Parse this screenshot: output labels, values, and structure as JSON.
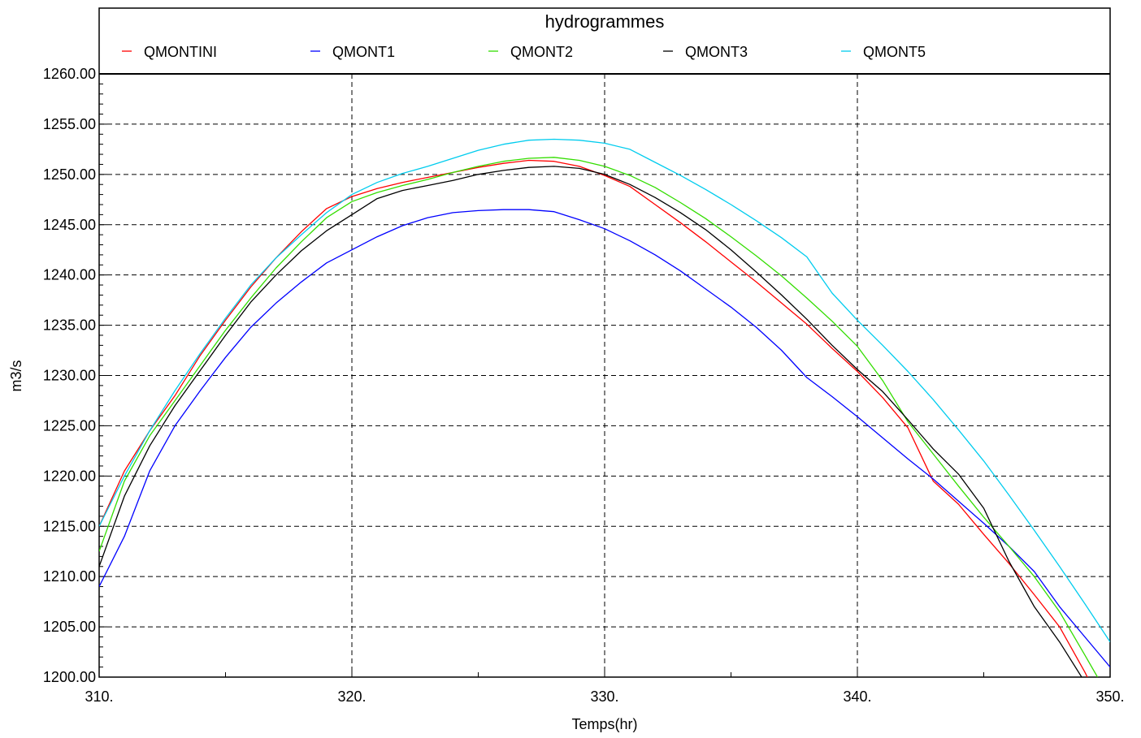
{
  "chart_data": {
    "type": "line",
    "title": "hydrogrammes",
    "xlabel": "Temps(hr)",
    "ylabel": "m3/s",
    "xlim": [
      310,
      350
    ],
    "ylim": [
      1200,
      1260
    ],
    "x_ticks": [
      "310.",
      "320.",
      "330.",
      "340.",
      "350."
    ],
    "x_tick_values": [
      310,
      320,
      330,
      340,
      350
    ],
    "y_ticks": [
      "1200.00",
      "1205.00",
      "1210.00",
      "1215.00",
      "1220.00",
      "1225.00",
      "1230.00",
      "1235.00",
      "1240.00",
      "1245.00",
      "1250.00",
      "1255.00",
      "1260.00"
    ],
    "y_tick_values": [
      1200,
      1205,
      1210,
      1215,
      1220,
      1225,
      1230,
      1235,
      1240,
      1245,
      1250,
      1255,
      1260
    ],
    "grid": true,
    "legend_position": "top",
    "series": [
      {
        "name": "QMONTINI",
        "color": "#ff0000",
        "points": [
          [
            310,
            1215
          ],
          [
            311,
            1220.5
          ],
          [
            312,
            1224.5
          ],
          [
            313,
            1228
          ],
          [
            314,
            1232
          ],
          [
            315,
            1235.5
          ],
          [
            316,
            1238.8
          ],
          [
            317,
            1241.7
          ],
          [
            318,
            1244.3
          ],
          [
            319,
            1246.6
          ],
          [
            320,
            1247.8
          ],
          [
            321,
            1248.6
          ],
          [
            322,
            1249.2
          ],
          [
            323,
            1249.7
          ],
          [
            324,
            1250.2
          ],
          [
            325,
            1250.7
          ],
          [
            326,
            1251.1
          ],
          [
            327,
            1251.4
          ],
          [
            328,
            1251.3
          ],
          [
            329,
            1250.8
          ],
          [
            330,
            1249.9
          ],
          [
            331,
            1248.8
          ],
          [
            332,
            1247
          ],
          [
            333,
            1245.2
          ],
          [
            334,
            1243.3
          ],
          [
            335,
            1241.3
          ],
          [
            336,
            1239.3
          ],
          [
            337,
            1237.2
          ],
          [
            338,
            1235.1
          ],
          [
            339,
            1232.7
          ],
          [
            340,
            1230.4
          ],
          [
            341,
            1227.8
          ],
          [
            342,
            1224.8
          ],
          [
            343,
            1219.5
          ],
          [
            344,
            1217.2
          ],
          [
            345,
            1214.2
          ],
          [
            346,
            1211.3
          ],
          [
            347,
            1208.2
          ],
          [
            348,
            1205
          ],
          [
            349,
            1200.5
          ],
          [
            349.2,
            1199.5
          ]
        ]
      },
      {
        "name": "QMONT1",
        "color": "#0000ff",
        "points": [
          [
            310,
            1209
          ],
          [
            311,
            1214
          ],
          [
            312,
            1220.5
          ],
          [
            313,
            1225
          ],
          [
            314,
            1228.5
          ],
          [
            315,
            1231.8
          ],
          [
            316,
            1234.8
          ],
          [
            317,
            1237.2
          ],
          [
            318,
            1239.3
          ],
          [
            319,
            1241.2
          ],
          [
            320,
            1242.5
          ],
          [
            321,
            1243.8
          ],
          [
            322,
            1244.9
          ],
          [
            323,
            1245.7
          ],
          [
            324,
            1246.2
          ],
          [
            325,
            1246.4
          ],
          [
            326,
            1246.5
          ],
          [
            327,
            1246.5
          ],
          [
            328,
            1246.3
          ],
          [
            329,
            1245.5
          ],
          [
            330,
            1244.6
          ],
          [
            331,
            1243.4
          ],
          [
            332,
            1242
          ],
          [
            333,
            1240.4
          ],
          [
            334,
            1238.6
          ],
          [
            335,
            1236.8
          ],
          [
            336,
            1234.8
          ],
          [
            337,
            1232.5
          ],
          [
            338,
            1229.8
          ],
          [
            339,
            1227.9
          ],
          [
            340,
            1225.9
          ],
          [
            341,
            1223.8
          ],
          [
            342,
            1221.7
          ],
          [
            343,
            1219.7
          ],
          [
            344,
            1217.5
          ],
          [
            345,
            1215.3
          ],
          [
            346,
            1213
          ],
          [
            347,
            1210.5
          ],
          [
            348,
            1207
          ],
          [
            349,
            1204
          ],
          [
            350,
            1201
          ]
        ]
      },
      {
        "name": "QMONT2",
        "color": "#33dd00",
        "points": [
          [
            310,
            1212.5
          ],
          [
            311,
            1219.5
          ],
          [
            312,
            1224
          ],
          [
            313,
            1227.5
          ],
          [
            314,
            1231
          ],
          [
            315,
            1234.5
          ],
          [
            316,
            1237.7
          ],
          [
            317,
            1240.7
          ],
          [
            318,
            1243.3
          ],
          [
            319,
            1245.7
          ],
          [
            320,
            1247.3
          ],
          [
            321,
            1248.2
          ],
          [
            322,
            1248.9
          ],
          [
            323,
            1249.5
          ],
          [
            324,
            1250.2
          ],
          [
            325,
            1250.8
          ],
          [
            326,
            1251.3
          ],
          [
            327,
            1251.6
          ],
          [
            328,
            1251.7
          ],
          [
            329,
            1251.4
          ],
          [
            330,
            1250.8
          ],
          [
            331,
            1249.9
          ],
          [
            332,
            1248.7
          ],
          [
            333,
            1247.2
          ],
          [
            334,
            1245.6
          ],
          [
            335,
            1243.8
          ],
          [
            336,
            1241.9
          ],
          [
            337,
            1239.9
          ],
          [
            338,
            1237.7
          ],
          [
            339,
            1235.4
          ],
          [
            340,
            1232.9
          ],
          [
            341,
            1229.5
          ],
          [
            342,
            1225.4
          ],
          [
            343,
            1222.2
          ],
          [
            344,
            1219
          ],
          [
            345,
            1215.9
          ],
          [
            346,
            1213
          ],
          [
            347,
            1210
          ],
          [
            348,
            1206.5
          ],
          [
            349,
            1202.2
          ],
          [
            349.5,
            1200
          ]
        ]
      },
      {
        "name": "QMONT3",
        "color": "#000000",
        "points": [
          [
            310,
            1211
          ],
          [
            311,
            1218
          ],
          [
            312,
            1223
          ],
          [
            313,
            1227
          ],
          [
            314,
            1230.5
          ],
          [
            315,
            1234
          ],
          [
            316,
            1237.3
          ],
          [
            317,
            1240
          ],
          [
            318,
            1242.4
          ],
          [
            319,
            1244.4
          ],
          [
            320,
            1246
          ],
          [
            321,
            1247.6
          ],
          [
            322,
            1248.4
          ],
          [
            323,
            1248.9
          ],
          [
            324,
            1249.4
          ],
          [
            325,
            1250
          ],
          [
            326,
            1250.4
          ],
          [
            327,
            1250.7
          ],
          [
            328,
            1250.8
          ],
          [
            329,
            1250.6
          ],
          [
            330,
            1250
          ],
          [
            331,
            1249
          ],
          [
            332,
            1247.7
          ],
          [
            333,
            1246.2
          ],
          [
            334,
            1244.5
          ],
          [
            335,
            1242.5
          ],
          [
            336,
            1240.3
          ],
          [
            337,
            1238
          ],
          [
            338,
            1235.6
          ],
          [
            339,
            1233
          ],
          [
            340,
            1230.6
          ],
          [
            341,
            1228.4
          ],
          [
            342,
            1225.6
          ],
          [
            343,
            1222.7
          ],
          [
            344,
            1220.2
          ],
          [
            345,
            1216.8
          ],
          [
            346,
            1211.5
          ],
          [
            347,
            1207
          ],
          [
            348,
            1203.5
          ],
          [
            349,
            1199.5
          ]
        ]
      },
      {
        "name": "QMONT5",
        "color": "#00ccee",
        "points": [
          [
            310,
            1215
          ],
          [
            311,
            1220
          ],
          [
            312,
            1224.5
          ],
          [
            313,
            1228.5
          ],
          [
            314,
            1232.2
          ],
          [
            315,
            1235.7
          ],
          [
            316,
            1239
          ],
          [
            317,
            1241.7
          ],
          [
            318,
            1244
          ],
          [
            319,
            1246.2
          ],
          [
            320,
            1248
          ],
          [
            321,
            1249.2
          ],
          [
            322,
            1250.1
          ],
          [
            323,
            1250.8
          ],
          [
            324,
            1251.6
          ],
          [
            325,
            1252.4
          ],
          [
            326,
            1253
          ],
          [
            327,
            1253.4
          ],
          [
            328,
            1253.5
          ],
          [
            329,
            1253.4
          ],
          [
            330,
            1253.1
          ],
          [
            331,
            1252.5
          ],
          [
            332,
            1251.2
          ],
          [
            333,
            1249.9
          ],
          [
            334,
            1248.5
          ],
          [
            335,
            1247
          ],
          [
            336,
            1245.4
          ],
          [
            337,
            1243.7
          ],
          [
            338,
            1241.8
          ],
          [
            339,
            1238.2
          ],
          [
            340,
            1235.5
          ],
          [
            341,
            1233
          ],
          [
            342,
            1230.4
          ],
          [
            343,
            1227.6
          ],
          [
            344,
            1224.6
          ],
          [
            345,
            1221.5
          ],
          [
            346,
            1218.1
          ],
          [
            347,
            1214.6
          ],
          [
            348,
            1211
          ],
          [
            349,
            1207.3
          ],
          [
            350,
            1203.5
          ]
        ]
      }
    ]
  }
}
